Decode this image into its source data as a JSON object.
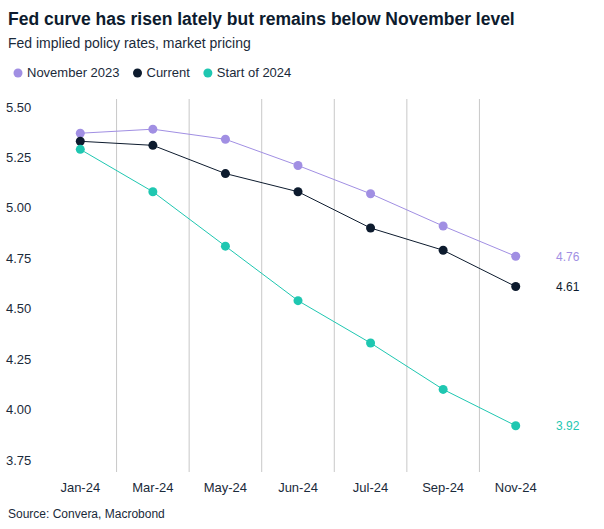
{
  "chart_data": {
    "type": "line",
    "title": "Fed curve has risen lately but remains below November level",
    "subtitle": "Fed implied policy rates, market pricing",
    "source": "Source: Convera, Macrobond",
    "categories": [
      "Jan-24",
      "Mar-24",
      "May-24",
      "Jun-24",
      "Jul-24",
      "Sep-24",
      "Nov-24"
    ],
    "series": [
      {
        "name": "November 2023",
        "color": "#a18fe3",
        "marker": "circle",
        "values": [
          5.37,
          5.39,
          5.34,
          5.21,
          5.07,
          4.91,
          4.76
        ],
        "value_labels": [
          null,
          null,
          null,
          null,
          null,
          null,
          "4.76"
        ]
      },
      {
        "name": "Current",
        "color": "#0d1b2e",
        "marker": "circle",
        "values": [
          5.33,
          5.31,
          5.17,
          5.08,
          4.9,
          4.79,
          4.61
        ],
        "value_labels": [
          null,
          null,
          null,
          null,
          null,
          null,
          "4.61"
        ]
      },
      {
        "name": "Start of 2024",
        "color": "#1fc7b1",
        "marker": "circle",
        "values": [
          5.29,
          5.08,
          4.81,
          4.54,
          4.33,
          4.1,
          3.92
        ],
        "value_labels": [
          null,
          null,
          null,
          null,
          null,
          null,
          "3.92"
        ]
      }
    ],
    "ylim": [
      3.75,
      5.5
    ],
    "yticks": [
      {
        "value": 5.5,
        "label": "5.50"
      },
      5.25,
      {
        "value": 5.0,
        "label": "5.00"
      },
      4.75,
      {
        "value": 4.5,
        "label": "4.50"
      },
      4.25,
      {
        "value": 4.0,
        "label": "4.00"
      },
      3.75
    ],
    "grid": true,
    "legend": "top-left"
  }
}
